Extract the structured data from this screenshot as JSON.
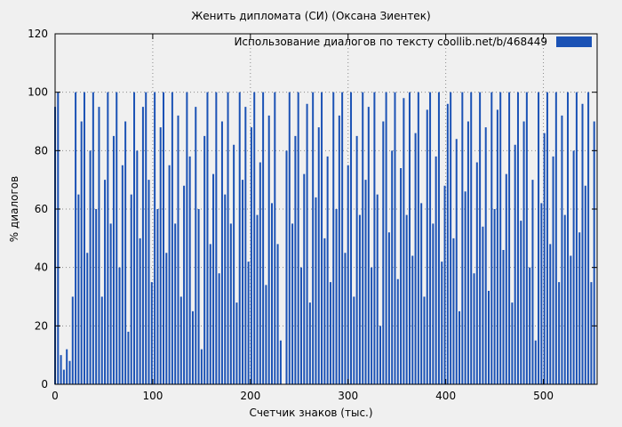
{
  "colors": {
    "series": "#1b52b5",
    "grid": "#8a8a8a",
    "axis": "#000000",
    "background": "#f0f0f0"
  },
  "chart_data": {
    "type": "bar",
    "title": "Женить дипломата (СИ) (Оксана Зиентек)",
    "xlabel": "Счетчик знаков (тыс.)",
    "ylabel": "% диалогов",
    "xlim": [
      0,
      555
    ],
    "ylim": [
      0,
      120
    ],
    "xticks": [
      0,
      100,
      200,
      300,
      400,
      500
    ],
    "yticks": [
      0,
      20,
      40,
      60,
      80,
      100,
      120
    ],
    "grid": true,
    "legend_position": "top-right",
    "series": [
      {
        "name": "Использование диалогов по тексту coollib.net/b/468449",
        "x_start": 0,
        "x_step": 3,
        "values": [
          95,
          100,
          10,
          5,
          12,
          8,
          30,
          100,
          65,
          90,
          100,
          45,
          80,
          100,
          60,
          95,
          30,
          70,
          100,
          55,
          85,
          100,
          40,
          75,
          90,
          18,
          65,
          100,
          80,
          50,
          95,
          100,
          70,
          35,
          100,
          60,
          88,
          100,
          45,
          75,
          100,
          55,
          92,
          30,
          68,
          100,
          78,
          25,
          95,
          60,
          12,
          85,
          100,
          48,
          72,
          100,
          38,
          90,
          65,
          100,
          55,
          82,
          28,
          100,
          70,
          95,
          42,
          88,
          100,
          58,
          76,
          100,
          34,
          92,
          62,
          100,
          48,
          15,
          0,
          80,
          100,
          55,
          85,
          100,
          40,
          72,
          96,
          28,
          100,
          64,
          88,
          100,
          50,
          78,
          35,
          100,
          60,
          92,
          100,
          45,
          75,
          100,
          30,
          85,
          58,
          100,
          70,
          95,
          40,
          100,
          65,
          20,
          90,
          100,
          52,
          80,
          100,
          36,
          74,
          98,
          58,
          100,
          44,
          86,
          100,
          62,
          30,
          94,
          100,
          55,
          78,
          100,
          42,
          68,
          96,
          100,
          50,
          84,
          25,
          100,
          66,
          90,
          100,
          38,
          76,
          100,
          54,
          88,
          32,
          100,
          60,
          94,
          100,
          46,
          72,
          100,
          28,
          82,
          100,
          56,
          90,
          100,
          40,
          70,
          15,
          100,
          62,
          86,
          100,
          48,
          78,
          100,
          35,
          92,
          58,
          100,
          44,
          80,
          100,
          52,
          96,
          68,
          100,
          35,
          90
        ]
      }
    ]
  }
}
